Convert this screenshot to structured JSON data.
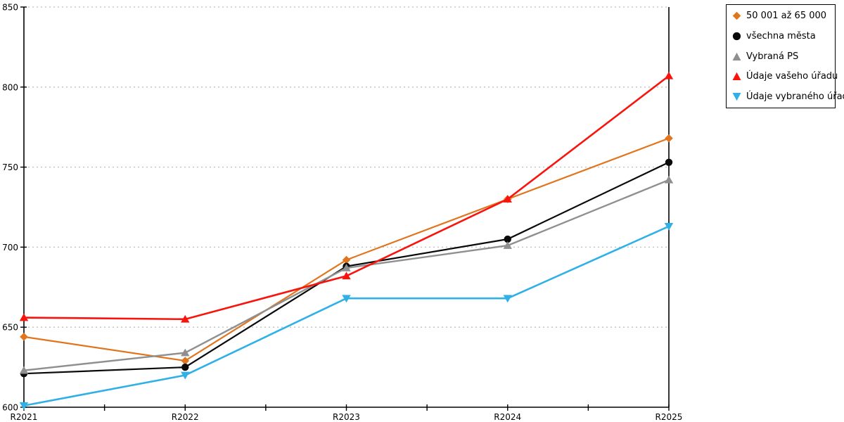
{
  "chart_data": {
    "type": "line",
    "categories": [
      "R2021",
      "R2022",
      "R2023",
      "R2024",
      "R2025"
    ],
    "series": [
      {
        "name": "50 001 až 65 000",
        "color": "#E1751E",
        "marker": "diamond",
        "line_width": 2.2,
        "values": [
          644,
          629,
          692,
          730,
          768
        ]
      },
      {
        "name": "všechna města",
        "color": "#0A0A0A",
        "marker": "circle",
        "line_width": 2.2,
        "values": [
          621,
          625,
          688,
          705,
          753
        ]
      },
      {
        "name": "Vybraná PS",
        "color": "#8F8F8F",
        "marker": "triangle-up",
        "line_width": 2.4,
        "values": [
          623,
          634,
          687,
          701,
          742
        ]
      },
      {
        "name": "Údaje vašeho úřadu",
        "color": "#F8140C",
        "marker": "triangle-up",
        "line_width": 2.6,
        "values": [
          656,
          655,
          682,
          730,
          807
        ]
      },
      {
        "name": "Údaje vybraného úřadu",
        "color": "#2FB0E7",
        "marker": "triangle-down",
        "line_width": 2.6,
        "values": [
          601,
          620,
          668,
          668,
          713
        ]
      }
    ],
    "y_axis": {
      "min": 600,
      "max": 850,
      "ticks": [
        600,
        650,
        700,
        750,
        800,
        850
      ]
    },
    "x_axis": {
      "minor_ticks_between_categories": true
    },
    "grid": {
      "horizontal": "dashed",
      "color": "#BFBFBF"
    },
    "legend": {
      "position": "top-right",
      "border_color": "#000000",
      "background": "#FFFFFF"
    },
    "axis_color": "#000000",
    "background_color": "#FFFFFF"
  }
}
